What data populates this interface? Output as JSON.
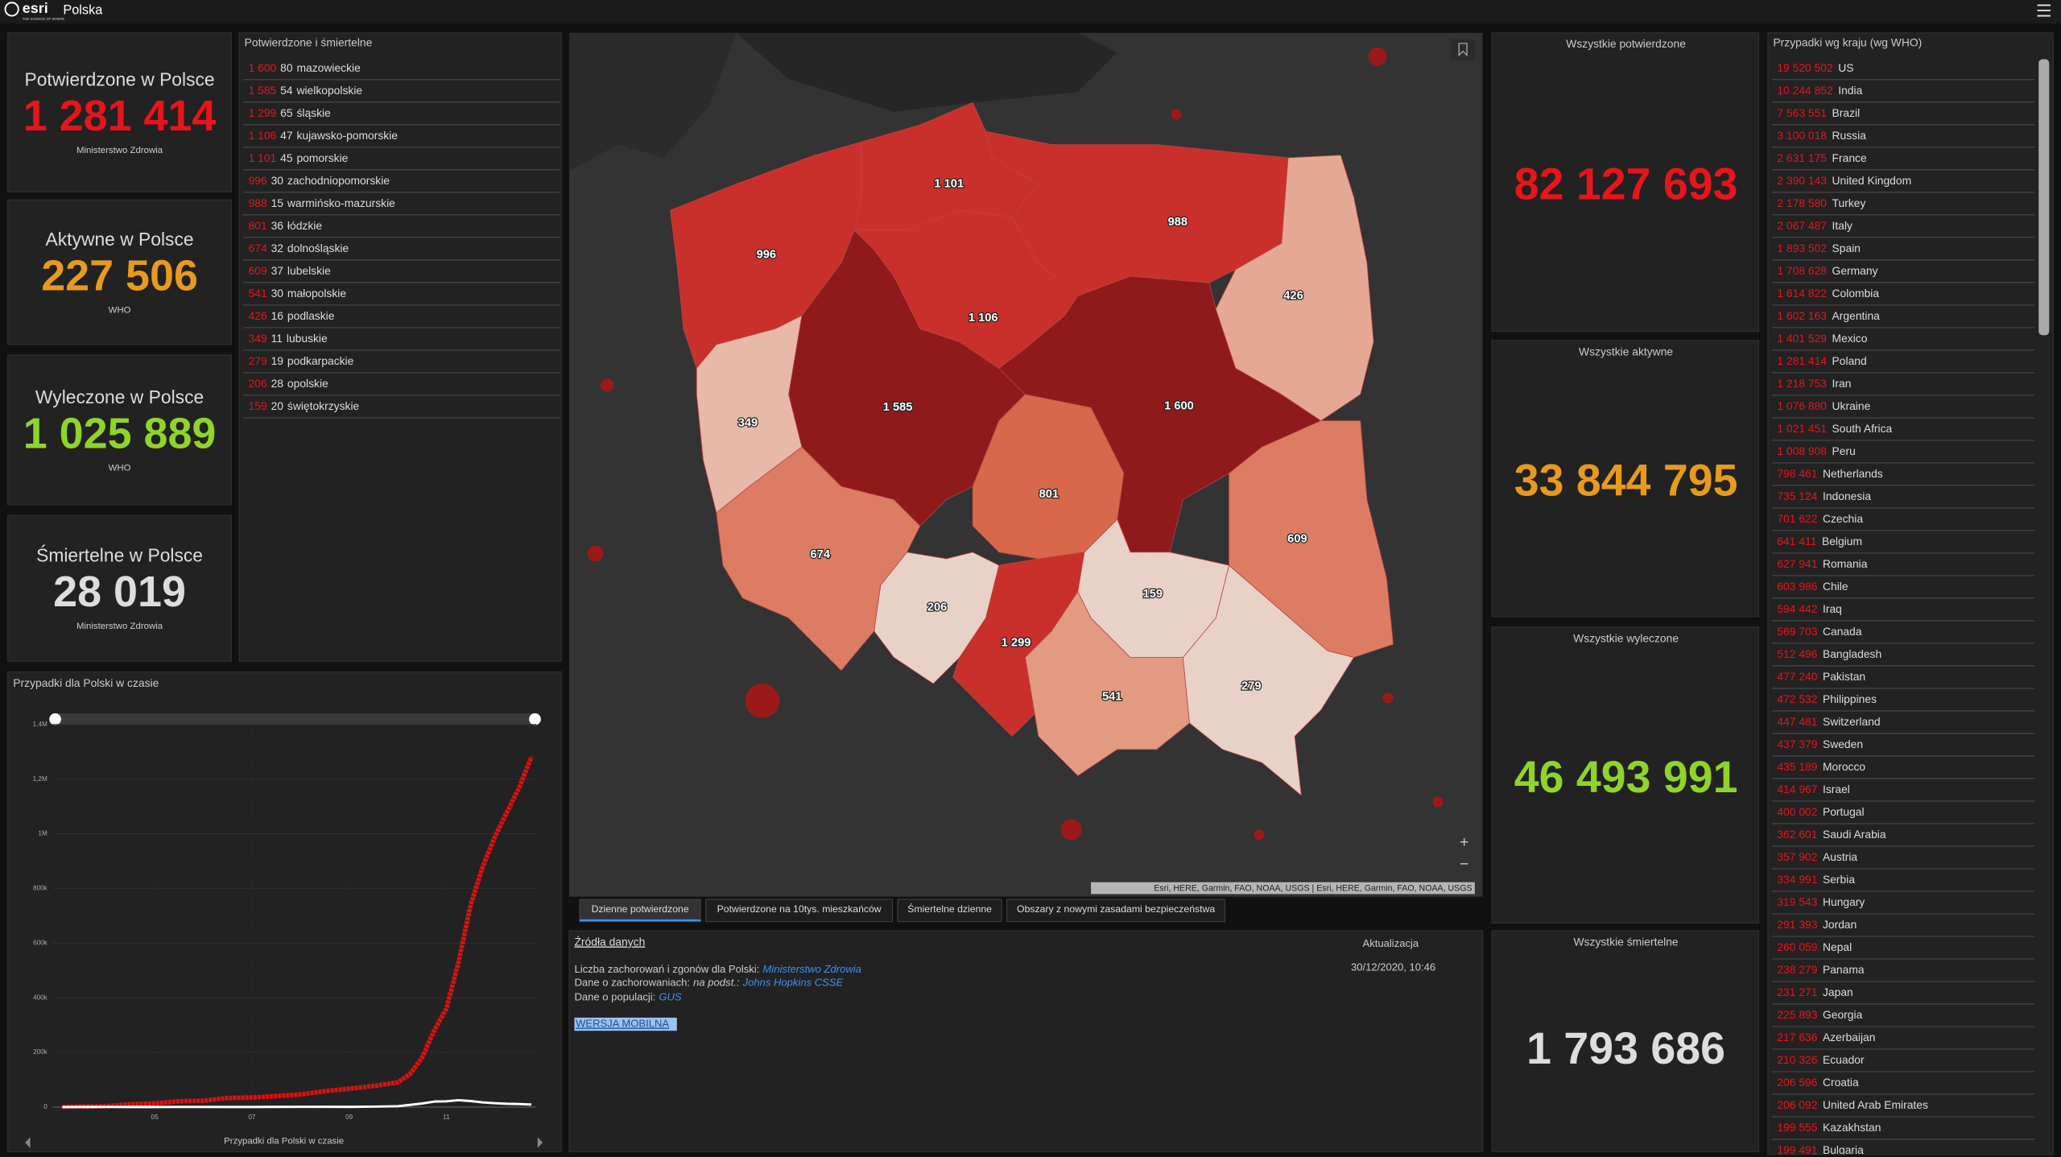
{
  "header": {
    "logo": "esri",
    "tagline": "THE SCIENCE OF WHERE",
    "title": "Polska"
  },
  "kpis": [
    {
      "title": "Potwierdzone w Polsce",
      "value": "1 281 414",
      "source": "Ministerstwo Zdrowia",
      "color": "#e8141b"
    },
    {
      "title": "Aktywne w Polsce",
      "value": "227 506",
      "source": "WHO",
      "color": "#e89a1e"
    },
    {
      "title": "Wyleczone w Polsce",
      "value": "1 025 889",
      "source": "WHO",
      "color": "#8fd42a"
    },
    {
      "title": "Śmiertelne w Polsce",
      "value": "28 019",
      "source": "Ministerstwo Zdrowia",
      "color": "#dddddd"
    }
  ],
  "regions": {
    "title": "Potwierdzone i śmiertelne",
    "rows": [
      {
        "cases": "1 600",
        "deaths": "80",
        "name": "mazowieckie",
        "color": "#8e1a1c"
      },
      {
        "cases": "1 585",
        "deaths": "54",
        "name": "wielkopolskie",
        "color": "#8e1a1c"
      },
      {
        "cases": "1 299",
        "deaths": "65",
        "name": "śląskie",
        "color": "#c9302c"
      },
      {
        "cases": "1 106",
        "deaths": "47",
        "name": "kujawsko-pomorskie",
        "color": "#c9302c"
      },
      {
        "cases": "1 101",
        "deaths": "45",
        "name": "pomorskie",
        "color": "#c9302c"
      },
      {
        "cases": "996",
        "deaths": "30",
        "name": "zachodniopomorskie",
        "color": "#c9302c"
      },
      {
        "cases": "988",
        "deaths": "15",
        "name": "warmińsko-mazurskie",
        "color": "#c9302c"
      },
      {
        "cases": "801",
        "deaths": "36",
        "name": "łódzkie",
        "color": "#d8674b"
      },
      {
        "cases": "674",
        "deaths": "32",
        "name": "dolnośląskie",
        "color": "#dc7d63"
      },
      {
        "cases": "609",
        "deaths": "37",
        "name": "lubelskie",
        "color": "#dc7d63"
      },
      {
        "cases": "541",
        "deaths": "30",
        "name": "małopolskie",
        "color": "#e29a80"
      },
      {
        "cases": "426",
        "deaths": "16",
        "name": "podlaskie",
        "color": "#e5a894"
      },
      {
        "cases": "349",
        "deaths": "11",
        "name": "lubuskie",
        "color": "#e8b8a8"
      },
      {
        "cases": "279",
        "deaths": "19",
        "name": "podkarpackie",
        "color": "#e8d2c8"
      },
      {
        "cases": "206",
        "deaths": "28",
        "name": "opolskie",
        "color": "#e8d2c8"
      },
      {
        "cases": "159",
        "deaths": "20",
        "name": "świętokrzyskie",
        "color": "#e8d2c8"
      }
    ]
  },
  "map": {
    "attribution": "Esri, HERE, Garmin, FAO, NOAA, USGS | Esri, HERE, Garmin, FAO, NOAA, USGS"
  },
  "tabs": [
    "Dzienne potwierdzone",
    "Potwierdzone na 10tys. mieszkańców",
    "Śmiertelne dzienne",
    "Obszary z nowymi zasadami bezpieczeństwa"
  ],
  "sources": {
    "title": "Źródła danych",
    "line1": "Liczba zachorowań i zgonów dla Polski:",
    "link1": "Ministerstwo Zdrowia",
    "line2": "Dane o zachorowaniach:",
    "line2_note": "na podst.:",
    "link2": "Johns Hopkins CSSE",
    "line3": "Dane o populacji:",
    "link3": "GUS",
    "mobile": "WERSJA MOBILNA",
    "update_label": "Aktualizacja",
    "update_value": "30/12/2020, 10:46"
  },
  "world": [
    {
      "title": "Wszystkie potwierdzone",
      "value": "82 127 693",
      "color": "#e8141b"
    },
    {
      "title": "Wszystkie aktywne",
      "value": "33 844 795",
      "color": "#e89a1e"
    },
    {
      "title": "Wszystkie wyleczone",
      "value": "46 493 991",
      "color": "#8fd42a"
    },
    {
      "title": "Wszystkie śmiertelne",
      "value": "1 793 686",
      "color": "#dddddd"
    }
  ],
  "countries": {
    "title": "Przypadki wg kraju (wg WHO)",
    "rows": [
      {
        "count": "19 520 502",
        "name": "US"
      },
      {
        "count": "10 244 852",
        "name": "India"
      },
      {
        "count": "7 563 551",
        "name": "Brazil"
      },
      {
        "count": "3 100 018",
        "name": "Russia"
      },
      {
        "count": "2 631 175",
        "name": "France"
      },
      {
        "count": "2 390 143",
        "name": "United Kingdom"
      },
      {
        "count": "2 178 580",
        "name": "Turkey"
      },
      {
        "count": "2 067 487",
        "name": "Italy"
      },
      {
        "count": "1 893 502",
        "name": "Spain"
      },
      {
        "count": "1 708 628",
        "name": "Germany"
      },
      {
        "count": "1 614 822",
        "name": "Colombia"
      },
      {
        "count": "1 602 163",
        "name": "Argentina"
      },
      {
        "count": "1 401 529",
        "name": "Mexico"
      },
      {
        "count": "1 281 414",
        "name": "Poland"
      },
      {
        "count": "1 218 753",
        "name": "Iran"
      },
      {
        "count": "1 076 880",
        "name": "Ukraine"
      },
      {
        "count": "1 021 451",
        "name": "South Africa"
      },
      {
        "count": "1 008 908",
        "name": "Peru"
      },
      {
        "count": "798 461",
        "name": "Netherlands"
      },
      {
        "count": "735 124",
        "name": "Indonesia"
      },
      {
        "count": "701 622",
        "name": "Czechia"
      },
      {
        "count": "641 411",
        "name": "Belgium"
      },
      {
        "count": "627 941",
        "name": "Romania"
      },
      {
        "count": "603 986",
        "name": "Chile"
      },
      {
        "count": "594 442",
        "name": "Iraq"
      },
      {
        "count": "569 703",
        "name": "Canada"
      },
      {
        "count": "512 496",
        "name": "Bangladesh"
      },
      {
        "count": "477 240",
        "name": "Pakistan"
      },
      {
        "count": "472 532",
        "name": "Philippines"
      },
      {
        "count": "447 481",
        "name": "Switzerland"
      },
      {
        "count": "437 379",
        "name": "Sweden"
      },
      {
        "count": "435 189",
        "name": "Morocco"
      },
      {
        "count": "414 967",
        "name": "Israel"
      },
      {
        "count": "400 002",
        "name": "Portugal"
      },
      {
        "count": "362 601",
        "name": "Saudi Arabia"
      },
      {
        "count": "357 902",
        "name": "Austria"
      },
      {
        "count": "334 991",
        "name": "Serbia"
      },
      {
        "count": "319 543",
        "name": "Hungary"
      },
      {
        "count": "291 393",
        "name": "Jordan"
      },
      {
        "count": "260 059",
        "name": "Nepal"
      },
      {
        "count": "238 279",
        "name": "Panama"
      },
      {
        "count": "231 271",
        "name": "Japan"
      },
      {
        "count": "225 893",
        "name": "Georgia"
      },
      {
        "count": "217 636",
        "name": "Azerbaijan"
      },
      {
        "count": "210 326",
        "name": "Ecuador"
      },
      {
        "count": "206 596",
        "name": "Croatia"
      },
      {
        "count": "206 092",
        "name": "United Arab Emirates"
      },
      {
        "count": "199 555",
        "name": "Kazakhstan"
      },
      {
        "count": "199 491",
        "name": "Bulgaria"
      }
    ]
  },
  "chart_data": {
    "type": "line",
    "title": "Przypadki dla Polski w czasie",
    "xlabel": "Przypadki dla Polski w czasie",
    "x": [
      3.1,
      3.5,
      4,
      4.5,
      5,
      5.5,
      6,
      6.5,
      7,
      7.5,
      8,
      8.5,
      9,
      9.5,
      10,
      10.25,
      10.5,
      10.75,
      11,
      11.25,
      11.5,
      11.75,
      12,
      12.25,
      12.5,
      12.75
    ],
    "series": [
      {
        "color": "#e01010",
        "values": [
          0,
          2000,
          3000,
          10000,
          13000,
          21000,
          23000,
          33000,
          35000,
          40000,
          46000,
          58000,
          67000,
          77000,
          90000,
          120000,
          180000,
          280000,
          360000,
          530000,
          740000,
          880000,
          990000,
          1080000,
          1170000,
          1281414
        ]
      },
      {
        "color": "#ffffff",
        "values": [
          0,
          200,
          400,
          300,
          300,
          400,
          400,
          300,
          300,
          600,
          800,
          900,
          600,
          1500,
          3000,
          8000,
          13000,
          20000,
          21000,
          25000,
          22000,
          17000,
          14000,
          12000,
          11000,
          9000
        ]
      }
    ],
    "xlim": [
      2.9,
      12.85
    ],
    "ylim": [
      0,
      1400000
    ],
    "xticks": [
      {
        "value": 5,
        "label": "05"
      },
      {
        "value": 7,
        "label": "07"
      },
      {
        "value": 9,
        "label": "09"
      },
      {
        "value": 11,
        "label": "11"
      }
    ],
    "yticks": [
      0,
      {
        "value": 200000,
        "label": "200k"
      },
      {
        "value": 400000,
        "label": "400k"
      },
      {
        "value": 600000,
        "label": "600k"
      },
      {
        "value": 800000,
        "label": "800k"
      },
      {
        "value": 1000000,
        "label": "1M"
      },
      {
        "value": 1200000,
        "label": "1,2M"
      },
      {
        "value": 1400000,
        "label": "1,4M"
      }
    ],
    "grid": true
  }
}
